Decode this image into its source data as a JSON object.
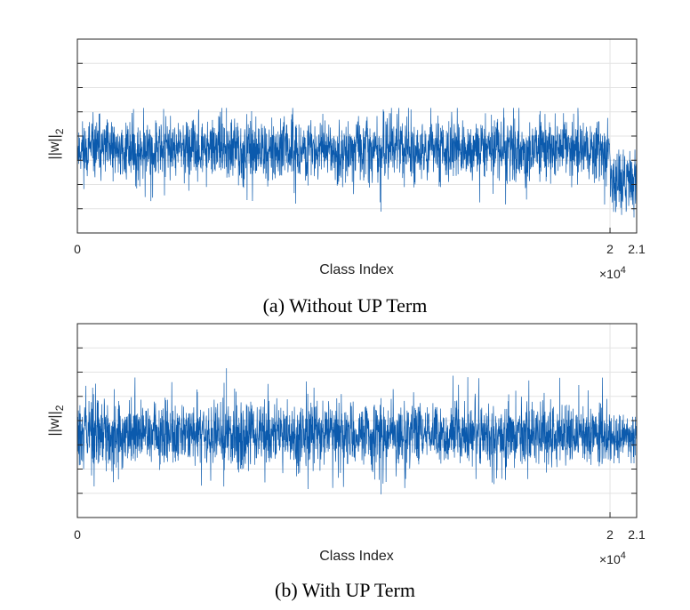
{
  "chart_data": [
    {
      "type": "line",
      "caption": "(a) Without UP Term",
      "xlabel": "Class Index",
      "ylabel": "||w||",
      "ylabel_sub": "2",
      "x_tick_labels": [
        "0",
        "2",
        "2.1"
      ],
      "x_ticks": [
        0,
        20000,
        21000
      ],
      "x_exponent_label": "×10",
      "x_exponent": "4",
      "xlim": [
        0,
        21000
      ],
      "ylim": [
        0,
        10
      ],
      "grid": true,
      "series_color": "#0b5aad",
      "segments": [
        {
          "x_start": 0,
          "x_end": 20000,
          "mean": 4.3,
          "spread": 1.35,
          "max": 6.45,
          "min": 1.1
        },
        {
          "x_start": 20000,
          "x_end": 21000,
          "mean": 2.6,
          "spread": 1.2,
          "max": 4.3,
          "min": 0.8
        }
      ]
    },
    {
      "type": "line",
      "caption": "(b) With UP Term",
      "xlabel": "Class Index",
      "ylabel": "||w||",
      "ylabel_sub": "2",
      "x_tick_labels": [
        "0",
        "2",
        "2.1"
      ],
      "x_ticks": [
        0,
        20000,
        21000
      ],
      "x_exponent_label": "×10",
      "x_exponent": "4",
      "xlim": [
        0,
        21000
      ],
      "ylim": [
        0,
        10
      ],
      "grid": true,
      "series_color": "#0b5aad",
      "segments": [
        {
          "x_start": 0,
          "x_end": 20000,
          "mean": 4.3,
          "spread": 1.45,
          "max": 7.7,
          "min": 1.2
        },
        {
          "x_start": 20000,
          "x_end": 21000,
          "mean": 4.0,
          "spread": 1.0,
          "max": 5.3,
          "min": 2.8
        }
      ]
    }
  ]
}
